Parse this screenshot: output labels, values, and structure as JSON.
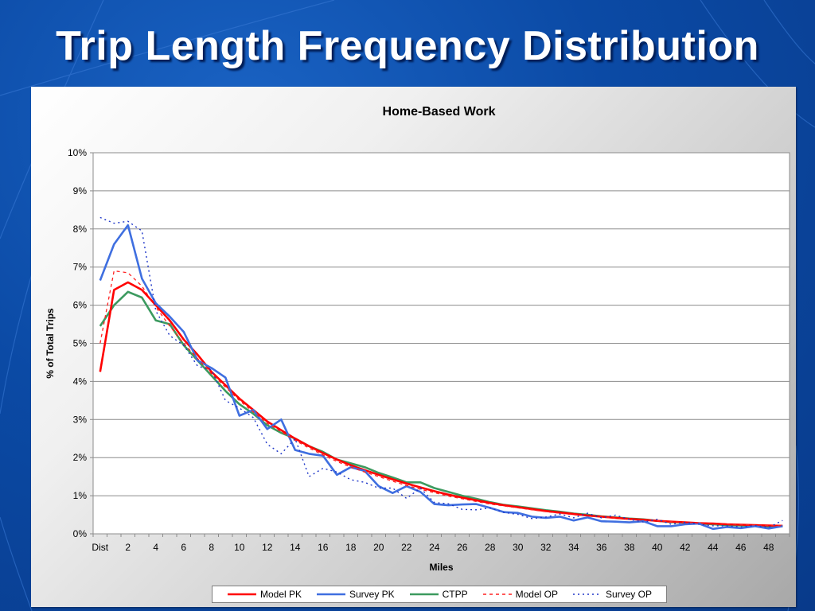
{
  "slide": {
    "title": "Trip Length Frequency Distribution",
    "background_color": "#0b4aa5"
  },
  "chart_data": {
    "type": "line",
    "title": "Home-Based Work",
    "xlabel": "Miles",
    "ylabel": "% of Total Trips",
    "x_tick_labels": [
      "Dist",
      "2",
      "4",
      "6",
      "8",
      "10",
      "12",
      "14",
      "16",
      "18",
      "20",
      "22",
      "24",
      "26",
      "28",
      "30",
      "32",
      "34",
      "36",
      "38",
      "40",
      "42",
      "44",
      "46",
      "48"
    ],
    "x": [
      "Dist",
      "1",
      "2",
      "3",
      "4",
      "5",
      "6",
      "7",
      "8",
      "9",
      "10",
      "11",
      "12",
      "13",
      "14",
      "15",
      "16",
      "17",
      "18",
      "19",
      "20",
      "21",
      "22",
      "23",
      "24",
      "25",
      "26",
      "27",
      "28",
      "29",
      "30",
      "31",
      "32",
      "33",
      "34",
      "35",
      "36",
      "37",
      "38",
      "39",
      "40",
      "41",
      "42",
      "43",
      "44",
      "45",
      "46",
      "47",
      "48",
      "49"
    ],
    "y_tick_labels": [
      "0%",
      "1%",
      "2%",
      "3%",
      "4%",
      "5%",
      "6%",
      "7%",
      "8%",
      "9%",
      "10%"
    ],
    "ylim": [
      0,
      10
    ],
    "grid": "horizontal",
    "legend_position": "bottom",
    "series": [
      {
        "name": "Model PK",
        "color": "#ff0000",
        "style": "solid",
        "width": 2.6,
        "values": [
          4.25,
          6.4,
          6.6,
          6.4,
          6.0,
          5.6,
          5.1,
          4.7,
          4.25,
          3.9,
          3.55,
          3.25,
          2.95,
          2.72,
          2.5,
          2.3,
          2.12,
          1.95,
          1.8,
          1.67,
          1.55,
          1.43,
          1.32,
          1.22,
          1.12,
          1.03,
          0.95,
          0.88,
          0.81,
          0.75,
          0.7,
          0.65,
          0.6,
          0.56,
          0.52,
          0.48,
          0.45,
          0.42,
          0.39,
          0.37,
          0.34,
          0.32,
          0.3,
          0.28,
          0.27,
          0.25,
          0.24,
          0.23,
          0.22,
          0.21
        ]
      },
      {
        "name": "Survey PK",
        "color": "#3f6fe0",
        "style": "solid",
        "width": 2.6,
        "values": [
          6.65,
          7.6,
          8.1,
          6.7,
          6.05,
          5.7,
          5.3,
          4.55,
          4.35,
          4.1,
          3.1,
          3.25,
          2.75,
          3.0,
          2.2,
          2.1,
          2.05,
          1.55,
          1.75,
          1.65,
          1.25,
          1.07,
          1.25,
          1.1,
          0.78,
          0.75,
          0.77,
          0.78,
          0.68,
          0.57,
          0.55,
          0.45,
          0.42,
          0.45,
          0.35,
          0.43,
          0.33,
          0.32,
          0.3,
          0.33,
          0.2,
          0.2,
          0.25,
          0.27,
          0.13,
          0.18,
          0.15,
          0.2,
          0.14,
          0.2
        ]
      },
      {
        "name": "CTPP",
        "color": "#3c9a5f",
        "style": "solid",
        "width": 2.6,
        "values": [
          5.45,
          6.0,
          6.35,
          6.2,
          5.6,
          5.5,
          4.95,
          4.55,
          4.15,
          3.75,
          3.4,
          3.15,
          2.85,
          2.65,
          2.5,
          2.3,
          2.15,
          1.95,
          1.85,
          1.75,
          1.6,
          1.48,
          1.35,
          1.35,
          1.2,
          1.1,
          1.0,
          0.92,
          0.83,
          0.76,
          0.72,
          0.67,
          0.62,
          0.58,
          0.53,
          0.5,
          0.46,
          0.43,
          0.4,
          0.38,
          0.34,
          0.31,
          0.29,
          0.27,
          0.25,
          0.23,
          0.22,
          0.21,
          0.19,
          0.2
        ]
      },
      {
        "name": "Model OP",
        "color": "#ff2020",
        "style": "dashed",
        "width": 1.3,
        "values": [
          5.0,
          6.9,
          6.85,
          6.5,
          5.95,
          5.45,
          5.0,
          4.6,
          4.2,
          3.85,
          3.5,
          3.2,
          2.9,
          2.68,
          2.45,
          2.25,
          2.07,
          1.9,
          1.75,
          1.62,
          1.5,
          1.38,
          1.27,
          1.17,
          1.08,
          0.99,
          0.92,
          0.85,
          0.78,
          0.73,
          0.68,
          0.63,
          0.58,
          0.54,
          0.5,
          0.47,
          0.44,
          0.41,
          0.38,
          0.36,
          0.34,
          0.32,
          0.3,
          0.28,
          0.26,
          0.25,
          0.24,
          0.23,
          0.22,
          0.21
        ]
      },
      {
        "name": "Survey OP",
        "color": "#1d35c8",
        "style": "dotted",
        "width": 1.4,
        "values": [
          8.3,
          8.15,
          8.2,
          7.95,
          5.85,
          5.2,
          4.95,
          4.4,
          4.3,
          3.5,
          3.3,
          3.05,
          2.35,
          2.1,
          2.5,
          1.5,
          1.72,
          1.62,
          1.42,
          1.35,
          1.2,
          1.2,
          0.93,
          1.2,
          0.82,
          0.79,
          0.64,
          0.63,
          0.68,
          0.56,
          0.51,
          0.4,
          0.44,
          0.52,
          0.42,
          0.54,
          0.42,
          0.49,
          0.38,
          0.31,
          0.38,
          0.25,
          0.3,
          0.25,
          0.21,
          0.21,
          0.18,
          0.22,
          0.17,
          0.35
        ]
      }
    ]
  }
}
